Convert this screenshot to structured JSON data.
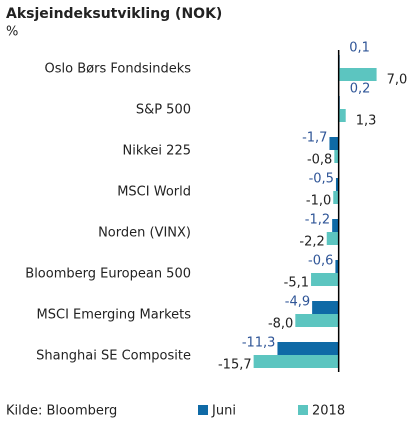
{
  "chart_data": {
    "type": "bar",
    "orientation": "horizontal",
    "title": "Aksjeindeksutvikling (NOK)",
    "subtitle": "%",
    "source": "Kilde: Bloomberg",
    "categories": [
      "Oslo Børs Fondsindeks",
      "S&P 500",
      "Nikkei 225",
      "MSCI World",
      "Norden (VINX)",
      "Bloomberg European 500",
      "MSCI Emerging Markets",
      "Shanghai SE Composite"
    ],
    "series": [
      {
        "name": "Juni",
        "color": "#0f6aa6",
        "values": [
          0.1,
          0.2,
          -1.7,
          -0.5,
          -1.2,
          -0.6,
          -4.9,
          -11.3
        ],
        "value_labels": [
          "0,1",
          "0,2",
          "-1,7",
          "-0,5",
          "-1,2",
          "-0,6",
          "-4,9",
          "-11,3"
        ]
      },
      {
        "name": "2018",
        "color": "#5cc5c0",
        "values": [
          7.0,
          1.3,
          -0.8,
          -1.0,
          -2.2,
          -5.1,
          -8.0,
          -15.7
        ],
        "value_labels": [
          "7,0",
          "1,3",
          "-0,8",
          "-1,0",
          "-2,2",
          "-5,1",
          "-8,0",
          "-15,7"
        ]
      }
    ],
    "xlim": [
      -16,
      8
    ]
  }
}
